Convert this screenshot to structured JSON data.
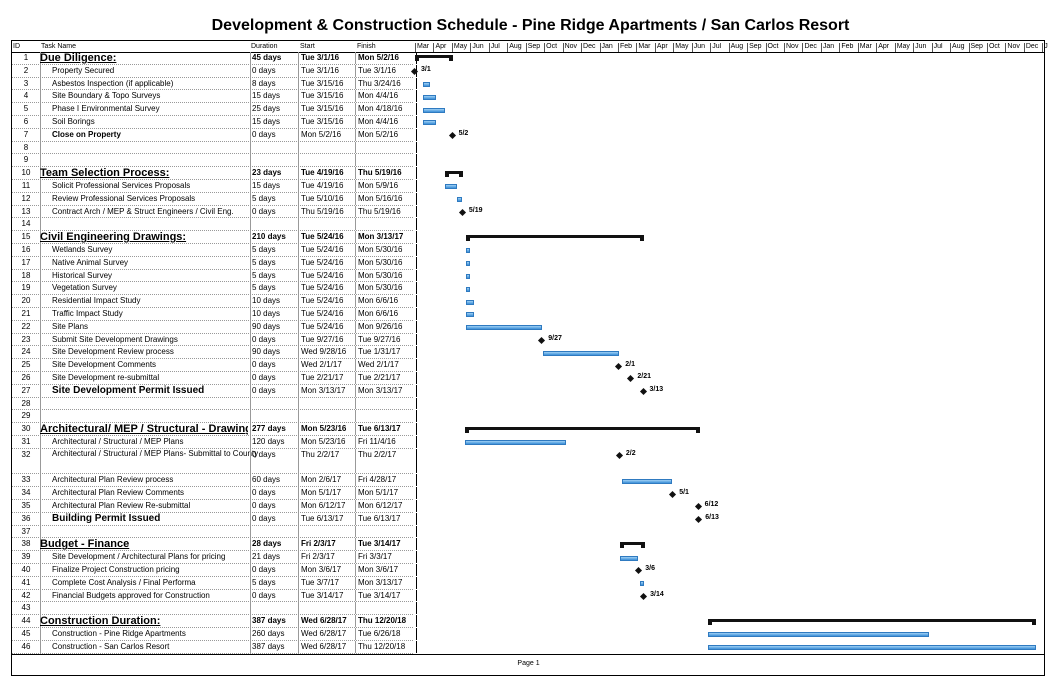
{
  "title": "Development & Construction Schedule - Pine Ridge Apartments  / San Carlos Resort",
  "columns": {
    "id": "ID",
    "name": "Task Name",
    "duration": "Duration",
    "start": "Start",
    "finish": "Finish"
  },
  "months": [
    "Mar",
    "Apr",
    "May",
    "Jun",
    "Jul",
    "Aug",
    "Sep",
    "Oct",
    "Nov",
    "Dec",
    "Jan",
    "Feb",
    "Mar",
    "Apr",
    "May",
    "Jun",
    "Jul",
    "Aug",
    "Sep",
    "Oct",
    "Nov",
    "Dec",
    "Jan",
    "Feb",
    "Mar",
    "Apr",
    "May",
    "Jun",
    "Jul",
    "Aug",
    "Sep",
    "Oct",
    "Nov",
    "Dec",
    "J"
  ],
  "colors": {
    "bar": "#3b8fd8",
    "summary": "#111111"
  },
  "tasks": [
    {
      "id": "1",
      "name": "Due Diligence:",
      "duration": "45 days",
      "start": "Tue 3/1/16",
      "finish": "Mon 5/2/16",
      "type": "summary"
    },
    {
      "id": "2",
      "name": "Property Secured",
      "duration": "0 days",
      "start": "Tue 3/1/16",
      "finish": "Tue 3/1/16",
      "type": "milestone",
      "label": "3/1"
    },
    {
      "id": "3",
      "name": "Asbestos Inspection (if applicable)",
      "duration": "8 days",
      "start": "Tue 3/15/16",
      "finish": "Thu 3/24/16",
      "type": "task"
    },
    {
      "id": "4",
      "name": "Site Boundary & Topo Surveys",
      "duration": "15 days",
      "start": "Tue 3/15/16",
      "finish": "Mon 4/4/16",
      "type": "task"
    },
    {
      "id": "5",
      "name": "Phase I Environmental Survey",
      "duration": "25 days",
      "start": "Tue 3/15/16",
      "finish": "Mon 4/18/16",
      "type": "task"
    },
    {
      "id": "6",
      "name": "Soil Borings",
      "duration": "15 days",
      "start": "Tue 3/15/16",
      "finish": "Mon 4/4/16",
      "type": "task"
    },
    {
      "id": "7",
      "name": "Close on Property",
      "duration": "0 days",
      "start": "Mon 5/2/16",
      "finish": "Mon 5/2/16",
      "type": "milestone",
      "label": "5/2",
      "style": "bold"
    },
    {
      "id": "8"
    },
    {
      "id": "9"
    },
    {
      "id": "10",
      "name": "Team Selection Process:",
      "duration": "23 days",
      "start": "Tue 4/19/16",
      "finish": "Thu 5/19/16",
      "type": "summary"
    },
    {
      "id": "11",
      "name": "Solicit Professional Services Proposals",
      "duration": "15 days",
      "start": "Tue 4/19/16",
      "finish": "Mon 5/9/16",
      "type": "task"
    },
    {
      "id": "12",
      "name": "Review Professional Services Proposals",
      "duration": "5 days",
      "start": "Tue 5/10/16",
      "finish": "Mon 5/16/16",
      "type": "task"
    },
    {
      "id": "13",
      "name": "Contract Arch / MEP & Struct Engineers / Civil Eng.",
      "duration": "0 days",
      "start": "Thu 5/19/16",
      "finish": "Thu 5/19/16",
      "type": "milestone",
      "label": "5/19"
    },
    {
      "id": "14"
    },
    {
      "id": "15",
      "name": "Civil Engineering Drawings:",
      "duration": "210 days",
      "start": "Tue 5/24/16",
      "finish": "Mon 3/13/17",
      "type": "summary"
    },
    {
      "id": "16",
      "name": "Wetlands Survey",
      "duration": "5 days",
      "start": "Tue 5/24/16",
      "finish": "Mon 5/30/16",
      "type": "task"
    },
    {
      "id": "17",
      "name": "Native Animal Survey",
      "duration": "5 days",
      "start": "Tue 5/24/16",
      "finish": "Mon 5/30/16",
      "type": "task"
    },
    {
      "id": "18",
      "name": "Historical Survey",
      "duration": "5 days",
      "start": "Tue 5/24/16",
      "finish": "Mon 5/30/16",
      "type": "task"
    },
    {
      "id": "19",
      "name": "Vegetation Survey",
      "duration": "5 days",
      "start": "Tue 5/24/16",
      "finish": "Mon 5/30/16",
      "type": "task"
    },
    {
      "id": "20",
      "name": "Residential Impact Study",
      "duration": "10 days",
      "start": "Tue 5/24/16",
      "finish": "Mon 6/6/16",
      "type": "task"
    },
    {
      "id": "21",
      "name": "Traffic Impact Study",
      "duration": "10 days",
      "start": "Tue 5/24/16",
      "finish": "Mon 6/6/16",
      "type": "task"
    },
    {
      "id": "22",
      "name": "Site Plans",
      "duration": "90 days",
      "start": "Tue 5/24/16",
      "finish": "Mon 9/26/16",
      "type": "task"
    },
    {
      "id": "23",
      "name": "Submit Site Development Drawings",
      "duration": "0 days",
      "start": "Tue 9/27/16",
      "finish": "Tue 9/27/16",
      "type": "milestone",
      "label": "9/27"
    },
    {
      "id": "24",
      "name": "Site Development Review process",
      "duration": "90 days",
      "start": "Wed 9/28/16",
      "finish": "Tue 1/31/17",
      "type": "task"
    },
    {
      "id": "25",
      "name": "Site Development Comments",
      "duration": "0 days",
      "start": "Wed 2/1/17",
      "finish": "Wed 2/1/17",
      "type": "milestone",
      "label": "2/1"
    },
    {
      "id": "26",
      "name": "Site Development re-submittal",
      "duration": "0 days",
      "start": "Tue 2/21/17",
      "finish": "Tue 2/21/17",
      "type": "milestone",
      "label": "2/21"
    },
    {
      "id": "27",
      "name": "Site Development Permit Issued",
      "duration": "0 days",
      "start": "Mon 3/13/17",
      "finish": "Mon 3/13/17",
      "type": "milestone",
      "label": "3/13",
      "style": "big"
    },
    {
      "id": "28"
    },
    {
      "id": "29"
    },
    {
      "id": "30",
      "name": "Architectural/ MEP / Structural - Drawings",
      "duration": "277 days",
      "start": "Mon 5/23/16",
      "finish": "Tue 6/13/17",
      "type": "summary"
    },
    {
      "id": "31",
      "name": "Architectural / Structural / MEP Plans",
      "duration": "120 days",
      "start": "Mon 5/23/16",
      "finish": "Fri 11/4/16",
      "type": "task"
    },
    {
      "id": "32",
      "name": "Architectural / Structural / MEP Plans- Submittal to County",
      "duration": "0 days",
      "start": "Thu 2/2/17",
      "finish": "Thu 2/2/17",
      "type": "milestone",
      "label": "2/2",
      "style": "wrap"
    },
    {
      "id": "33",
      "name": "Architectural Plan Review process",
      "duration": "60 days",
      "start": "Mon 2/6/17",
      "finish": "Fri 4/28/17",
      "type": "task"
    },
    {
      "id": "34",
      "name": "Architectural Plan Review Comments",
      "duration": "0 days",
      "start": "Mon 5/1/17",
      "finish": "Mon 5/1/17",
      "type": "milestone",
      "label": "5/1"
    },
    {
      "id": "35",
      "name": "Architectural Plan Review Re-submittal",
      "duration": "0 days",
      "start": "Mon 6/12/17",
      "finish": "Mon 6/12/17",
      "type": "milestone",
      "label": "6/12"
    },
    {
      "id": "36",
      "name": "Building Permit Issued",
      "duration": "0 days",
      "start": "Tue 6/13/17",
      "finish": "Tue 6/13/17",
      "type": "milestone",
      "label": "6/13",
      "style": "big"
    },
    {
      "id": "37"
    },
    {
      "id": "38",
      "name": "Budget - Finance",
      "duration": "28 days",
      "start": "Fri 2/3/17",
      "finish": "Tue 3/14/17",
      "type": "summary"
    },
    {
      "id": "39",
      "name": "Site Development / Architectural Plans for pricing",
      "duration": "21 days",
      "start": "Fri 2/3/17",
      "finish": "Fri 3/3/17",
      "type": "task"
    },
    {
      "id": "40",
      "name": "Finalize Project Construction pricing",
      "duration": "0 days",
      "start": "Mon 3/6/17",
      "finish": "Mon 3/6/17",
      "type": "milestone",
      "label": "3/6"
    },
    {
      "id": "41",
      "name": "Complete Cost Analysis / Final Performa",
      "duration": "5 days",
      "start": "Tue 3/7/17",
      "finish": "Mon 3/13/17",
      "type": "task"
    },
    {
      "id": "42",
      "name": "Financial Budgets approved for Construction",
      "duration": "0 days",
      "start": "Tue 3/14/17",
      "finish": "Tue 3/14/17",
      "type": "milestone",
      "label": "3/14"
    },
    {
      "id": "43"
    },
    {
      "id": "44",
      "name": "Construction Duration:",
      "duration": "387 days",
      "start": "Wed 6/28/17",
      "finish": "Thu 12/20/18",
      "type": "summary"
    },
    {
      "id": "45",
      "name": "Construction - Pine Ridge Apartments",
      "duration": "260 days",
      "start": "Wed 6/28/17",
      "finish": "Tue 6/26/18",
      "type": "task"
    },
    {
      "id": "46",
      "name": "Construction - San Carlos Resort",
      "duration": "387 days",
      "start": "Wed 6/28/17",
      "finish": "Thu 12/20/18",
      "type": "task"
    }
  ],
  "footer": "Page 1"
}
